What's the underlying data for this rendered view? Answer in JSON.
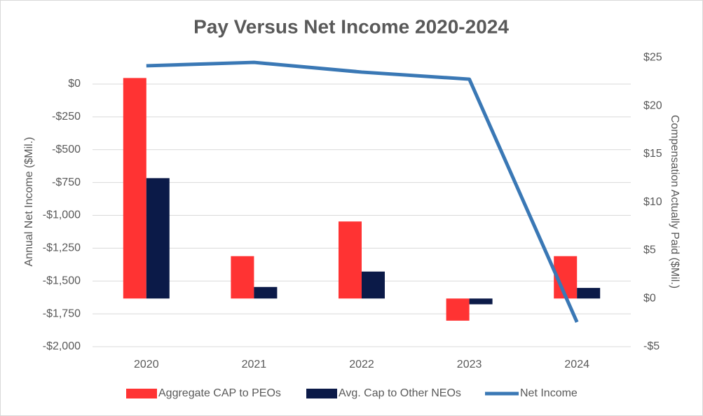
{
  "chart_data": {
    "type": "bar-line",
    "title": "Pay Versus Net Income 2020-2024",
    "y_label": "Annual Net Income ($Mil.)",
    "y2_label": "Compensation Actually Paid ($Mil.)",
    "categories": [
      "2020",
      "2021",
      "2022",
      "2023",
      "2024"
    ],
    "series": [
      {
        "name": "Aggregate CAP to PEOs",
        "type": "bar",
        "axis": "y2",
        "color": "#ff3333",
        "values": [
          22.9,
          4.4,
          8.0,
          -2.3,
          4.4
        ]
      },
      {
        "name": "Avg. Cap to Other NEOs",
        "type": "bar",
        "axis": "y2",
        "color": "#0b1a48",
        "values": [
          12.5,
          1.2,
          2.8,
          -0.6,
          1.1
        ]
      },
      {
        "name": "Net Income",
        "type": "line",
        "color": "#3a78b5",
        "values": [
          139,
          165,
          91,
          37,
          -1813
        ]
      }
    ],
    "ylim": [
      -2000,
      200
    ],
    "yticks": [
      {
        "value": 0,
        "label": "$0"
      },
      {
        "value": -250,
        "label": "-$250"
      },
      {
        "value": -500,
        "label": "-$500"
      },
      {
        "value": -750,
        "label": "-$750"
      },
      {
        "value": -1000,
        "label": "-$1,000"
      },
      {
        "value": -1250,
        "label": "-$1,250"
      },
      {
        "value": -1500,
        "label": "-$1,500"
      },
      {
        "value": -1750,
        "label": "-$1,750"
      },
      {
        "value": -2000,
        "label": "-$2,000"
      }
    ],
    "y2lim": [
      -5,
      25
    ],
    "y2ticks": [
      {
        "value": -5,
        "label": "-$5"
      },
      {
        "value": 0,
        "label": "$0"
      },
      {
        "value": 5,
        "label": "$5"
      },
      {
        "value": 10,
        "label": "$10"
      },
      {
        "value": 15,
        "label": "$15"
      },
      {
        "value": 20,
        "label": "$20"
      },
      {
        "value": 25,
        "label": "$25"
      }
    ],
    "grid": true,
    "legend": "bottom"
  }
}
